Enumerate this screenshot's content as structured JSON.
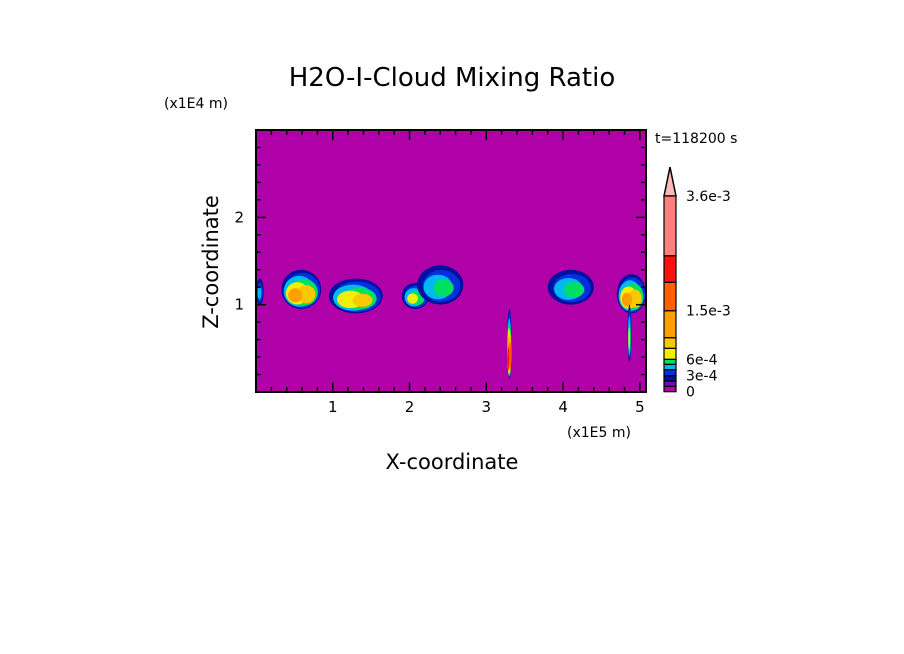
{
  "chart_data": {
    "type": "heatmap",
    "title": "H2O-I-Cloud Mixing Ratio",
    "xlabel": "X-coordinate",
    "ylabel": "Z-coordinate",
    "x_unit": "(x1E5 m)",
    "y_unit": "(x1E4 m)",
    "time_label": "t=118200 s",
    "xlim": [
      0,
      5.08
    ],
    "ylim": [
      0,
      3.0
    ],
    "x_ticks": [
      1,
      2,
      3,
      4,
      5
    ],
    "x_tick_labels": [
      "1",
      "2",
      "3",
      "4",
      "5"
    ],
    "y_ticks": [
      1,
      2
    ],
    "y_tick_labels": [
      "1",
      "2"
    ],
    "background_color": "#b000a8",
    "colorbar": {
      "levels": [
        0,
        0.0001,
        0.0002,
        0.0003,
        0.0004,
        0.0005,
        0.0006,
        0.0009,
        0.0012,
        0.0015,
        0.0021,
        0.0027,
        0.0036
      ],
      "colors": [
        "#b000a8",
        "#7010b0",
        "#0010a0",
        "#0030e0",
        "#00b8f0",
        "#00e060",
        "#f0f000",
        "#f8c800",
        "#ffa000",
        "#ff6000",
        "#ff1010",
        "#ff7f7f"
      ],
      "extend_color": "#ffb8b8",
      "labels": [
        {
          "value": 0,
          "text": "0"
        },
        {
          "value": 0.0003,
          "text": "3e-4"
        },
        {
          "value": 0.0006,
          "text": "6e-4"
        },
        {
          "value": 0.0015,
          "text": "1.5e-3"
        },
        {
          "value": 0.0036,
          "text": "3.6e-3"
        }
      ]
    },
    "cloud_regions": [
      {
        "x": [
          0.0,
          0.1
        ],
        "z": [
          1.0,
          1.3
        ],
        "max_level": 4
      },
      {
        "x": [
          0.33,
          0.85
        ],
        "z": [
          0.95,
          1.4
        ],
        "max_level": 8
      },
      {
        "x": [
          0.95,
          1.65
        ],
        "z": [
          0.9,
          1.3
        ],
        "max_level": 7
      },
      {
        "x": [
          1.9,
          2.25
        ],
        "z": [
          0.95,
          1.25
        ],
        "max_level": 6
      },
      {
        "x": [
          2.1,
          2.7
        ],
        "z": [
          1.0,
          1.45
        ],
        "max_level": 5
      },
      {
        "x": [
          3.27,
          3.33
        ],
        "z": [
          0.15,
          0.95
        ],
        "max_level": 10
      },
      {
        "x": [
          3.8,
          4.4
        ],
        "z": [
          1.0,
          1.4
        ],
        "max_level": 5
      },
      {
        "x": [
          4.7,
          5.08
        ],
        "z": [
          0.9,
          1.35
        ],
        "max_level": 8
      },
      {
        "x": [
          4.84,
          4.89
        ],
        "z": [
          0.35,
          1.0
        ],
        "max_level": 6
      }
    ]
  }
}
